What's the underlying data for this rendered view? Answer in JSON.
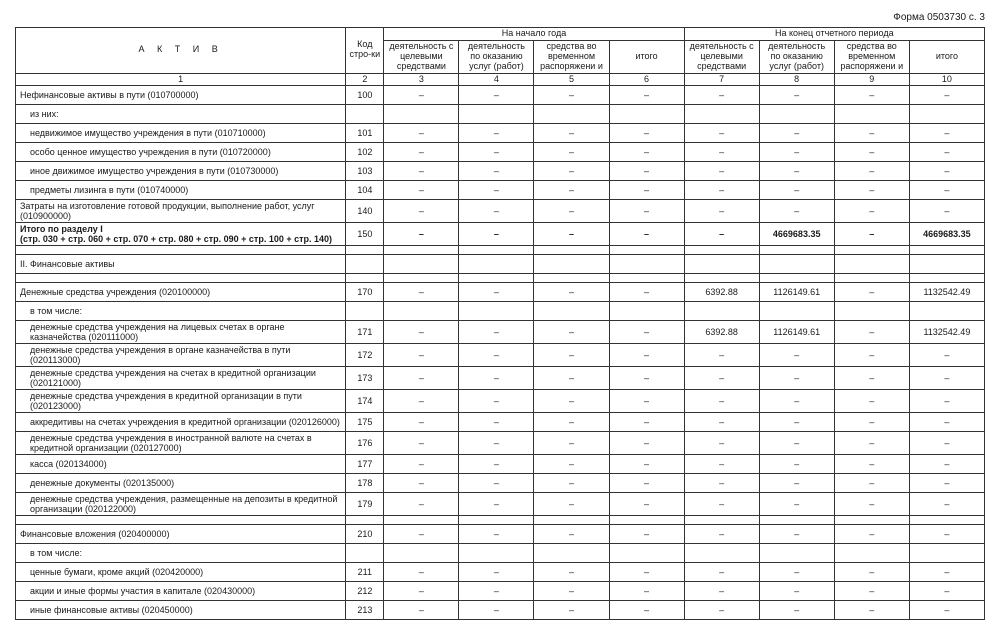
{
  "form_code": "Форма 0503730 с. 3",
  "head": {
    "aktiv": "А К Т И В",
    "code": "Код стро-ки",
    "group_start": "На начало года",
    "group_end": "На конец отчетного периода",
    "sub1": "деятельность с целевыми средствами",
    "sub2": "деятельность по оказанию услуг (работ)",
    "sub3": "средства во временном распоряжени и",
    "sub4": "итого",
    "colnums": [
      "1",
      "2",
      "3",
      "4",
      "5",
      "6",
      "7",
      "8",
      "9",
      "10"
    ]
  },
  "rows": [
    {
      "label": "Нефинансовые активы в пути (010700000)",
      "code": "100",
      "cls": "",
      "d": [
        "–",
        "–",
        "–",
        "–",
        "–",
        "–",
        "–",
        "–"
      ]
    },
    {
      "label": "из них:",
      "code": "",
      "cls": "indent1",
      "d": [
        "",
        "",
        "",
        "",
        "",
        "",
        "",
        ""
      ]
    },
    {
      "label": "недвижимое имущество учреждения в пути (010710000)",
      "code": "101",
      "cls": "indent1",
      "d": [
        "–",
        "–",
        "–",
        "–",
        "–",
        "–",
        "–",
        "–"
      ]
    },
    {
      "label": "особо ценное имущество учреждения в пути (010720000)",
      "code": "102",
      "cls": "indent1",
      "d": [
        "–",
        "–",
        "–",
        "–",
        "–",
        "–",
        "–",
        "–"
      ]
    },
    {
      "label": "иное движимое имущество учреждения в пути (010730000)",
      "code": "103",
      "cls": "indent1",
      "d": [
        "–",
        "–",
        "–",
        "–",
        "–",
        "–",
        "–",
        "–"
      ]
    },
    {
      "label": "предметы лизинга в пути (010740000)",
      "code": "104",
      "cls": "indent1",
      "d": [
        "–",
        "–",
        "–",
        "–",
        "–",
        "–",
        "–",
        "–"
      ]
    },
    {
      "label": "Затраты на изготовление готовой продукции, выполнение работ, услуг (010900000)",
      "code": "140",
      "cls": "",
      "d": [
        "–",
        "–",
        "–",
        "–",
        "–",
        "–",
        "–",
        "–"
      ]
    },
    {
      "label": "Итого по разделу I<br>(стр. 030 + стр. 060 + стр. 070 + стр. 080 + стр. 090 + стр. 100 + стр. 140)",
      "code": "150",
      "cls": "bold",
      "d": [
        "–",
        "–",
        "–",
        "–",
        "–",
        "4669683.35",
        "–",
        "4669683.35"
      ],
      "bold": true
    },
    {
      "spacer": true
    },
    {
      "label": "II. Финансовые активы",
      "code": "",
      "cls": "",
      "d": [
        "",
        "",
        "",
        "",
        "",
        "",
        "",
        ""
      ]
    },
    {
      "spacer": true
    },
    {
      "label": "Денежные средства учреждения (020100000)",
      "code": "170",
      "cls": "",
      "d": [
        "–",
        "–",
        "–",
        "–",
        "6392.88",
        "1126149.61",
        "–",
        "1132542.49"
      ]
    },
    {
      "label": "в том числе:",
      "code": "",
      "cls": "indent1",
      "d": [
        "",
        "",
        "",
        "",
        "",
        "",
        "",
        ""
      ]
    },
    {
      "label": "денежные средства учреждения на лицевых счетах в органе казначейства (020111000)",
      "code": "171",
      "cls": "indent1",
      "d": [
        "–",
        "–",
        "–",
        "–",
        "6392.88",
        "1126149.61",
        "–",
        "1132542.49"
      ]
    },
    {
      "label": "денежные средства учреждения в органе казначейства в пути (020113000)",
      "code": "172",
      "cls": "indent1",
      "d": [
        "–",
        "–",
        "–",
        "–",
        "–",
        "–",
        "–",
        "–"
      ]
    },
    {
      "label": "денежные средства учреждения на счетах в кредитной организации (020121000)",
      "code": "173",
      "cls": "indent1",
      "d": [
        "–",
        "–",
        "–",
        "–",
        "–",
        "–",
        "–",
        "–"
      ]
    },
    {
      "label": "денежные средства учреждения в кредитной организации в пути (020123000)",
      "code": "174",
      "cls": "indent1",
      "d": [
        "–",
        "–",
        "–",
        "–",
        "–",
        "–",
        "–",
        "–"
      ]
    },
    {
      "label": "аккредитивы на счетах учреждения в кредитной организации (020126000)",
      "code": "175",
      "cls": "indent1",
      "d": [
        "–",
        "–",
        "–",
        "–",
        "–",
        "–",
        "–",
        "–"
      ]
    },
    {
      "label": "денежные средства учреждения в иностранной валюте на счетах в кредитной организации (020127000)",
      "code": "176",
      "cls": "indent1",
      "d": [
        "–",
        "–",
        "–",
        "–",
        "–",
        "–",
        "–",
        "–"
      ]
    },
    {
      "label": "касса (020134000)",
      "code": "177",
      "cls": "indent1",
      "d": [
        "–",
        "–",
        "–",
        "–",
        "–",
        "–",
        "–",
        "–"
      ]
    },
    {
      "label": "денежные документы (020135000)",
      "code": "178",
      "cls": "indent1",
      "d": [
        "–",
        "–",
        "–",
        "–",
        "–",
        "–",
        "–",
        "–"
      ]
    },
    {
      "label": "денежные средства учреждения, размещенные на депозиты в кредитной организации (020122000)",
      "code": "179",
      "cls": "indent1",
      "d": [
        "–",
        "–",
        "–",
        "–",
        "–",
        "–",
        "–",
        "–"
      ]
    },
    {
      "spacer": true
    },
    {
      "label": "Финансовые вложения (020400000)",
      "code": "210",
      "cls": "",
      "d": [
        "–",
        "–",
        "–",
        "–",
        "–",
        "–",
        "–",
        "–"
      ]
    },
    {
      "label": "в том числе:",
      "code": "",
      "cls": "indent1",
      "d": [
        "",
        "",
        "",
        "",
        "",
        "",
        "",
        ""
      ]
    },
    {
      "label": "ценные бумаги, кроме акций (020420000)",
      "code": "211",
      "cls": "indent1",
      "d": [
        "–",
        "–",
        "–",
        "–",
        "–",
        "–",
        "–",
        "–"
      ]
    },
    {
      "label": "акции и иные формы участия в капитале (020430000)",
      "code": "212",
      "cls": "indent1",
      "d": [
        "–",
        "–",
        "–",
        "–",
        "–",
        "–",
        "–",
        "–"
      ]
    },
    {
      "label": "иные финансовые активы (020450000)",
      "code": "213",
      "cls": "indent1",
      "d": [
        "–",
        "–",
        "–",
        "–",
        "–",
        "–",
        "–",
        "–"
      ]
    }
  ]
}
